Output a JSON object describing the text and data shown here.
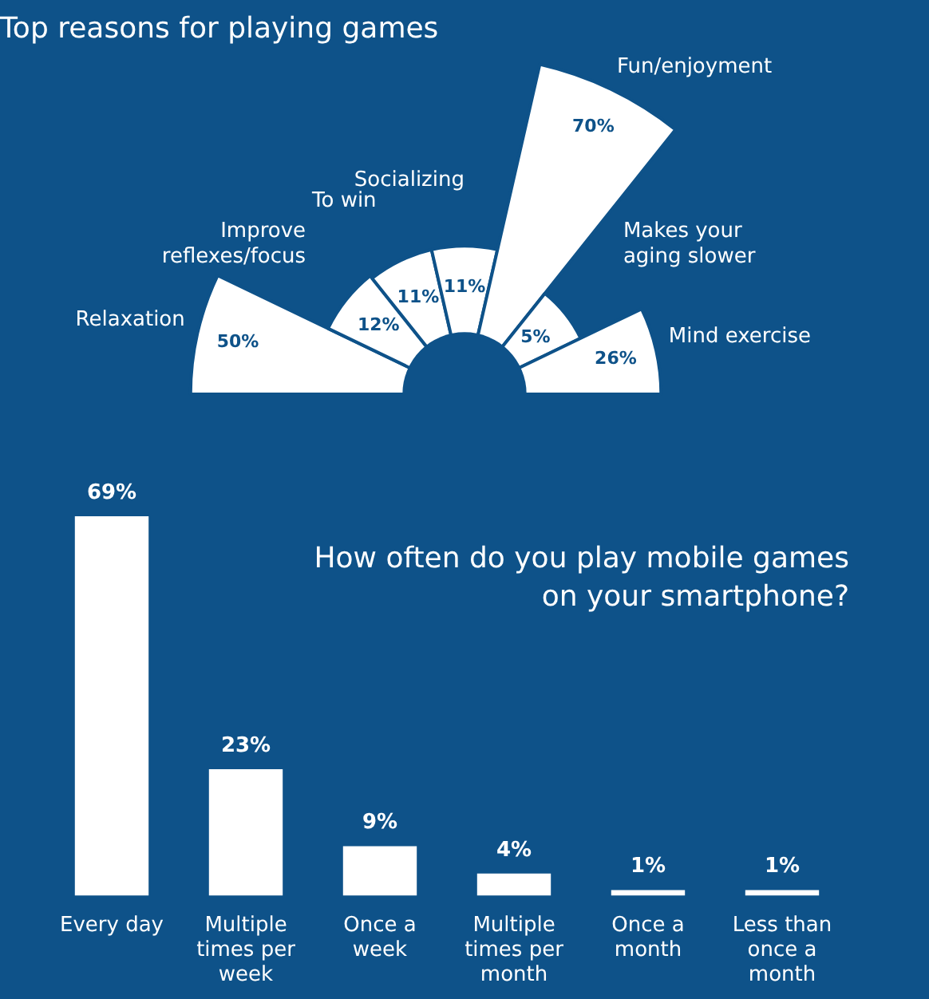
{
  "chart_data": [
    {
      "type": "other",
      "title": "Top reasons for playing games",
      "categories": [
        "Relaxation",
        "Improve reflexes/focus",
        "To win",
        "Socializing",
        "Fun/enjoyment",
        "Makes your aging slower",
        "Mind exercise"
      ],
      "values": [
        50,
        12,
        11,
        11,
        70,
        5,
        26
      ],
      "value_labels": [
        "50%",
        "12%",
        "11%",
        "11%",
        "70%",
        "5%",
        "26%"
      ],
      "color": "#ffffff"
    },
    {
      "type": "bar",
      "title": "How often do you play mobile games on your smartphone?",
      "categories": [
        "Every day",
        "Multiple times per week",
        "Once a week",
        "Multiple times per month",
        "Once a month",
        "Less than once a month"
      ],
      "values": [
        69,
        23,
        9,
        4,
        1,
        1
      ],
      "value_labels": [
        "69%",
        "23%",
        "9%",
        "4%",
        "1%",
        "1%"
      ],
      "color": "#ffffff"
    }
  ]
}
